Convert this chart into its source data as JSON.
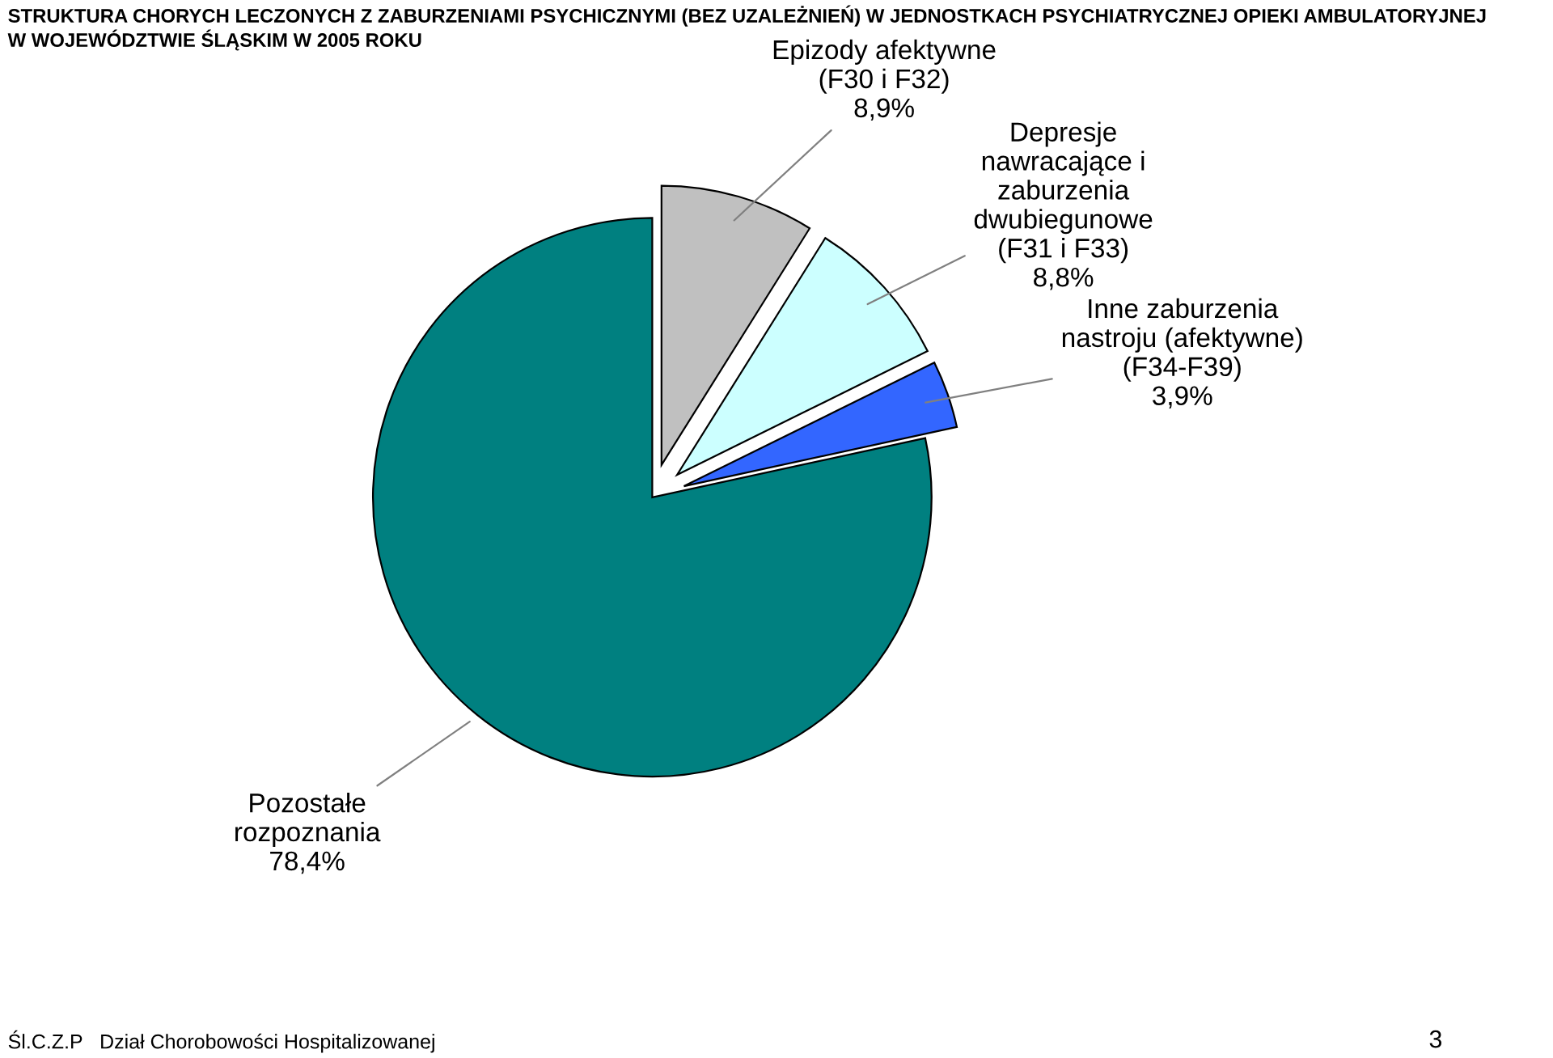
{
  "chart_data": {
    "type": "pie",
    "title": "STRUKTURA CHORYCH LECZONYCH Z ZABURZENIAMI PSYCHICZNYMI (BEZ UZALEŻNIEŃ) W JEDNOSTKACH PSYCHIATRYCZNEJ OPIEKI AMBULATORYJNEJ\nW WOJEWÓDZTWIE ŚLĄSKIM W 2005 ROKU",
    "categories": [
      "Epizody afektywne\n(F30 i F32)",
      "Depresje\nnawracające i\nzaburzenia\ndwubiegunowe\n(F31 i F33)",
      "Inne zaburzenia\nnastroju (afektywne)\n(F34-F39)",
      "Pozostałe\nrozpoznania"
    ],
    "values": [
      8.9,
      8.8,
      3.9,
      78.4
    ],
    "value_labels": [
      "8,9%",
      "8,8%",
      "3,9%",
      "78,4%"
    ],
    "colors": [
      "#c0c0c0",
      "#ccffff",
      "#3366ff",
      "#008080"
    ],
    "annotations": [
      "Śl.C.Z.P   Dział Chorobowości Hospitalizowanej",
      "3"
    ]
  }
}
